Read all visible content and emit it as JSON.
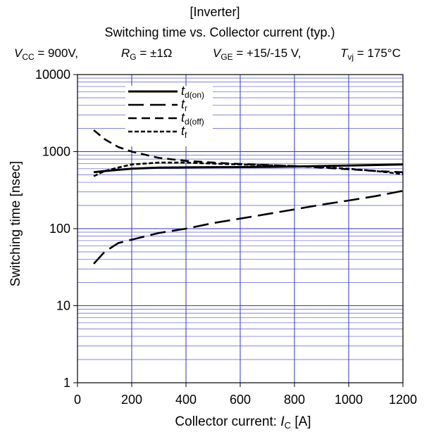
{
  "chart_data": {
    "type": "line",
    "title": "[Inverter]",
    "subtitle": "Switching time vs. Collector current  (typ.)",
    "conditions": {
      "vcc_sym": "V",
      "vcc_sub": "CC",
      "vcc_val": " =  900V,",
      "rg_sym": "R",
      "rg_sub": "G",
      "rg_val": " = ±1Ω",
      "vge_sym": "V",
      "vge_sub": "GE",
      "vge_val": " =    +15/-15 V,",
      "tvj_sym": "T",
      "tvj_sub": "vj",
      "tvj_val": " = 175°C"
    },
    "xlabel": "Collector current: ",
    "xlabel_sym": "I",
    "xlabel_sub": "C",
    "xlabel_unit": " [A]",
    "ylabel": "Switching time  [nsec]",
    "xlim": [
      0,
      1200
    ],
    "ylim": [
      1,
      10000
    ],
    "yscale": "log",
    "x_ticks": [
      0,
      200,
      400,
      600,
      800,
      1000,
      1200
    ],
    "x_tick_labels": [
      "0",
      "200",
      "400",
      "600",
      "800",
      "1000",
      "1200"
    ],
    "y_ticks": [
      1,
      10,
      100,
      1000,
      10000
    ],
    "y_tick_labels": [
      "1",
      "10",
      "100",
      "1000",
      "10000"
    ],
    "grid": true,
    "grid_color": "#3333cc",
    "legend_position": "top-left",
    "series": [
      {
        "name_main": "t",
        "name_sub": "d(on)",
        "style": "solid",
        "color": "#000000",
        "x": [
          60,
          100,
          150,
          200,
          300,
          400,
          500,
          600,
          700,
          800,
          900,
          1000,
          1100,
          1200
        ],
        "y": [
          540,
          560,
          580,
          600,
          620,
          625,
          628,
          630,
          632,
          640,
          650,
          660,
          670,
          680
        ]
      },
      {
        "name_main": "t",
        "name_sub": "r",
        "style": "longdash",
        "color": "#000000",
        "x": [
          60,
          100,
          150,
          200,
          300,
          400,
          500,
          600,
          700,
          800,
          900,
          1000,
          1100,
          1200
        ],
        "y": [
          35,
          50,
          65,
          72,
          88,
          100,
          118,
          135,
          155,
          178,
          205,
          232,
          265,
          310
        ]
      },
      {
        "name_main": "t",
        "name_sub": "d(off)",
        "style": "dash",
        "color": "#000000",
        "x": [
          60,
          100,
          150,
          200,
          300,
          400,
          500,
          600,
          700,
          800,
          900,
          1000,
          1100,
          1200
        ],
        "y": [
          1900,
          1450,
          1150,
          1000,
          830,
          760,
          720,
          690,
          670,
          650,
          620,
          590,
          560,
          540
        ]
      },
      {
        "name_main": "t",
        "name_sub": "f",
        "style": "shortdash",
        "color": "#000000",
        "x": [
          60,
          100,
          150,
          200,
          300,
          400,
          500,
          600,
          700,
          800,
          900,
          1000,
          1100,
          1200
        ],
        "y": [
          480,
          560,
          620,
          680,
          720,
          720,
          700,
          680,
          665,
          650,
          630,
          600,
          560,
          510
        ]
      }
    ]
  }
}
